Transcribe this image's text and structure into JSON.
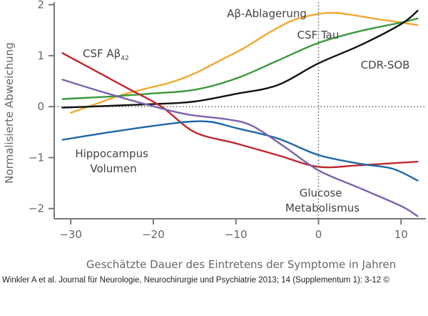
{
  "chart_data": {
    "type": "line",
    "xlabel": "Geschätzte Dauer des Eintretens der Symptome in Jahren",
    "ylabel": "Normalisierte Abweichung",
    "xlim": [
      -32,
      13
    ],
    "ylim": [
      -2.2,
      2.05
    ],
    "xticks": [
      -30,
      -20,
      -10,
      0,
      10
    ],
    "yticks": [
      2,
      1,
      0,
      -1,
      -2
    ],
    "xtick_labels": [
      "−30",
      "−20",
      "−10",
      "0",
      "10"
    ],
    "ytick_labels": [
      "2",
      "1",
      "0",
      "−1",
      "−2"
    ],
    "reference_lines": {
      "x": 0,
      "y": 0,
      "style": "dotted"
    },
    "series": [
      {
        "name": "Aβ-Ablagerung",
        "color": "#f0a830",
        "x": [
          -30,
          -27,
          -24,
          -21,
          -18,
          -15,
          -12,
          -9,
          -6,
          -3,
          0,
          2,
          4,
          7,
          10,
          12
        ],
        "y": [
          -0.12,
          0.05,
          0.22,
          0.35,
          0.47,
          0.65,
          0.9,
          1.15,
          1.45,
          1.7,
          1.82,
          1.84,
          1.8,
          1.72,
          1.65,
          1.6
        ]
      },
      {
        "name": "CSF Tau",
        "color": "#3a9a3a",
        "x": [
          -31,
          -25,
          -20,
          -15,
          -10,
          -5,
          0,
          5,
          10,
          12
        ],
        "y": [
          0.15,
          0.2,
          0.26,
          0.33,
          0.55,
          0.9,
          1.25,
          1.48,
          1.65,
          1.73
        ]
      },
      {
        "name": "CDR-SOB",
        "color": "#111111",
        "x": [
          -31,
          -20,
          -15,
          -10,
          -5,
          0,
          5,
          10,
          12
        ],
        "y": [
          -0.02,
          0.05,
          0.1,
          0.25,
          0.42,
          0.85,
          1.2,
          1.62,
          1.88
        ]
      },
      {
        "name": "CSF Aβ42",
        "color": "#c0262d",
        "x": [
          -31,
          -27,
          -23,
          -19,
          -15,
          -10,
          -5,
          0,
          5,
          10,
          12
        ],
        "y": [
          1.05,
          0.7,
          0.35,
          0.0,
          -0.5,
          -0.72,
          -0.95,
          -1.18,
          -1.15,
          -1.1,
          -1.08
        ]
      },
      {
        "name": "Hippocampus Volumen",
        "color": "#1e67a6",
        "x": [
          -31,
          -26,
          -21,
          -16,
          -13,
          -10,
          -5,
          0,
          5,
          9,
          12
        ],
        "y": [
          -0.65,
          -0.52,
          -0.4,
          -0.3,
          -0.3,
          -0.42,
          -0.62,
          -0.95,
          -1.12,
          -1.22,
          -1.45
        ]
      },
      {
        "name": "Glucose Metabolismus",
        "color": "#7b62ac",
        "x": [
          -31,
          -26,
          -21,
          -16,
          -11,
          -8,
          -4,
          0,
          5,
          10,
          12
        ],
        "y": [
          0.53,
          0.28,
          0.05,
          -0.15,
          -0.25,
          -0.38,
          -0.8,
          -1.25,
          -1.6,
          -1.95,
          -2.15
        ]
      }
    ],
    "labels": [
      {
        "text": "Aβ-Ablagerung",
        "series": "Aβ-Ablagerung"
      },
      {
        "text": "CSF Tau",
        "series": "CSF Tau"
      },
      {
        "text": "CDR-SOB",
        "series": "CDR-SOB"
      },
      {
        "text_main": "CSF Aβ",
        "text_sub": "42",
        "series": "CSF Aβ42"
      },
      {
        "lines": [
          "Hippocampus",
          "Volumen"
        ],
        "series": "Hippocampus Volumen"
      },
      {
        "lines": [
          "Glucose",
          "Metabolismus"
        ],
        "series": "Glucose Metabolismus"
      }
    ],
    "grid": false,
    "legend": "none"
  },
  "credit": "Winkler A et al. Journal für Neurologie, Neurochirurgie und Psychiatrie 2013; 14 (Supplementum 1): 3-12 ©"
}
